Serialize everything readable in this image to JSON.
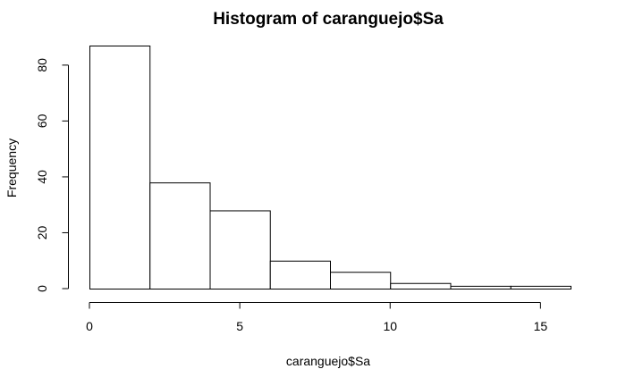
{
  "chart_data": {
    "type": "bar",
    "title": "Histogram of caranguejo$Sa",
    "xlabel": "caranguejo$Sa",
    "ylabel": "Frequency",
    "bins": [
      [
        0,
        2
      ],
      [
        2,
        4
      ],
      [
        4,
        6
      ],
      [
        6,
        8
      ],
      [
        8,
        10
      ],
      [
        10,
        12
      ],
      [
        12,
        14
      ],
      [
        14,
        16
      ]
    ],
    "values": [
      87,
      38,
      28,
      10,
      6,
      2,
      1,
      1
    ],
    "xlim": [
      0,
      16
    ],
    "ylim": [
      0,
      87
    ],
    "xticks": [
      "0",
      "5",
      "10",
      "15"
    ],
    "yticks": [
      "0",
      "20",
      "40",
      "60",
      "80"
    ],
    "grid": false
  }
}
